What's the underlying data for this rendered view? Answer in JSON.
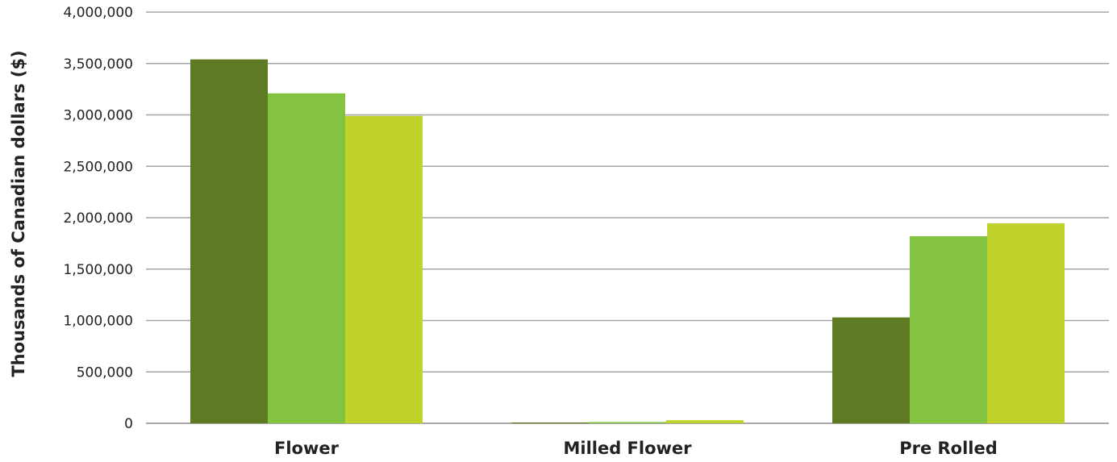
{
  "chart_data": {
    "type": "bar",
    "categories": [
      "Flower",
      "Milled Flower",
      "Pre Rolled"
    ],
    "series": [
      {
        "color": "#5e7a22",
        "values": [
          3540000,
          8000,
          1030000
        ]
      },
      {
        "color": "#83c341",
        "values": [
          3210000,
          12000,
          1820000
        ]
      },
      {
        "color": "#c0d22c",
        "values": [
          2990000,
          30000,
          1945000
        ]
      }
    ],
    "ylabel": "Thousands of Canadian dollars ($)",
    "xlabel": "",
    "ylim": [
      0,
      4000000
    ],
    "yticks": [
      {
        "value": 0,
        "label": "0"
      },
      {
        "value": 500000,
        "label": "500,000"
      },
      {
        "value": 1000000,
        "label": "1,000,000"
      },
      {
        "value": 1500000,
        "label": "1,500,000"
      },
      {
        "value": 2000000,
        "label": "2,000,000"
      },
      {
        "value": 2500000,
        "label": "2,500,000"
      },
      {
        "value": 3000000,
        "label": "3,000,000"
      },
      {
        "value": 3500000,
        "label": "3,500,000"
      },
      {
        "value": 4000000,
        "label": "4,000,000"
      }
    ],
    "grid": true,
    "legend": "none"
  }
}
